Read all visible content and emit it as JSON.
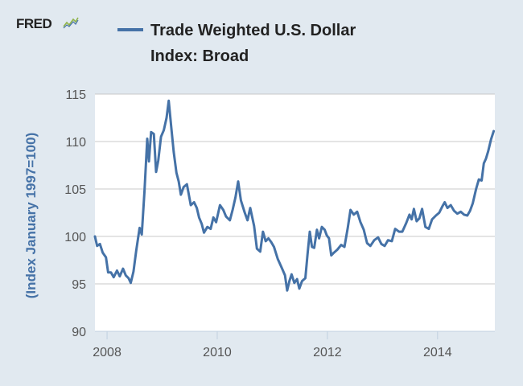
{
  "logo": {
    "text": "FRED"
  },
  "legend": {
    "line1": "Trade Weighted U.S. Dollar",
    "line2": "Index: Broad"
  },
  "colors": {
    "background": "#e1e9f0",
    "plot_background": "#ffffff",
    "series": "#4572a7",
    "grid": "#c8c8c8",
    "axis": "#c0d0e0",
    "axis_label": "#4572a7",
    "tick_text": "#555555"
  },
  "chart_data": {
    "type": "line",
    "title": "",
    "ylabel": "(Index January 1997=100)",
    "xlabel": "",
    "xlim": [
      2007.78,
      2015.04
    ],
    "ylim": [
      90,
      115
    ],
    "yticks": [
      90,
      95,
      100,
      105,
      110,
      115
    ],
    "xticks": [
      2008,
      2010,
      2012,
      2014
    ],
    "grid": true,
    "legend_position": "top",
    "series": [
      {
        "name": "Trade Weighted U.S. Dollar Index: Broad",
        "color": "#4572a7",
        "points": [
          [
            2007.78,
            100.0
          ],
          [
            2007.82,
            99.0
          ],
          [
            2007.87,
            99.2
          ],
          [
            2007.92,
            98.3
          ],
          [
            2007.98,
            97.8
          ],
          [
            2008.02,
            96.2
          ],
          [
            2008.07,
            96.2
          ],
          [
            2008.12,
            95.7
          ],
          [
            2008.18,
            96.4
          ],
          [
            2008.23,
            95.8
          ],
          [
            2008.29,
            96.6
          ],
          [
            2008.34,
            95.9
          ],
          [
            2008.39,
            95.6
          ],
          [
            2008.43,
            95.1
          ],
          [
            2008.48,
            96.3
          ],
          [
            2008.53,
            98.5
          ],
          [
            2008.59,
            100.9
          ],
          [
            2008.63,
            100.2
          ],
          [
            2008.68,
            104.8
          ],
          [
            2008.73,
            110.3
          ],
          [
            2008.76,
            107.9
          ],
          [
            2008.8,
            111.0
          ],
          [
            2008.85,
            110.8
          ],
          [
            2008.89,
            106.8
          ],
          [
            2008.93,
            108.0
          ],
          [
            2008.98,
            110.5
          ],
          [
            2009.03,
            111.2
          ],
          [
            2009.08,
            112.5
          ],
          [
            2009.12,
            114.3
          ],
          [
            2009.17,
            111.2
          ],
          [
            2009.21,
            108.9
          ],
          [
            2009.26,
            106.7
          ],
          [
            2009.3,
            105.8
          ],
          [
            2009.34,
            104.4
          ],
          [
            2009.39,
            105.2
          ],
          [
            2009.45,
            105.5
          ],
          [
            2009.52,
            103.3
          ],
          [
            2009.58,
            103.6
          ],
          [
            2009.63,
            103.0
          ],
          [
            2009.67,
            102.0
          ],
          [
            2009.72,
            101.3
          ],
          [
            2009.76,
            100.4
          ],
          [
            2009.82,
            101.0
          ],
          [
            2009.88,
            100.8
          ],
          [
            2009.93,
            102.0
          ],
          [
            2009.98,
            101.5
          ],
          [
            2010.05,
            103.3
          ],
          [
            2010.11,
            102.8
          ],
          [
            2010.16,
            102.1
          ],
          [
            2010.23,
            101.7
          ],
          [
            2010.28,
            102.8
          ],
          [
            2010.33,
            104.1
          ],
          [
            2010.38,
            105.8
          ],
          [
            2010.43,
            103.8
          ],
          [
            2010.5,
            102.5
          ],
          [
            2010.55,
            101.7
          ],
          [
            2010.6,
            103.0
          ],
          [
            2010.67,
            101.1
          ],
          [
            2010.72,
            98.7
          ],
          [
            2010.78,
            98.4
          ],
          [
            2010.83,
            100.5
          ],
          [
            2010.88,
            99.5
          ],
          [
            2010.93,
            99.8
          ],
          [
            2010.98,
            99.4
          ],
          [
            2011.03,
            98.9
          ],
          [
            2011.1,
            97.6
          ],
          [
            2011.17,
            96.7
          ],
          [
            2011.23,
            95.9
          ],
          [
            2011.27,
            94.3
          ],
          [
            2011.31,
            95.3
          ],
          [
            2011.35,
            96.0
          ],
          [
            2011.4,
            95.1
          ],
          [
            2011.45,
            95.5
          ],
          [
            2011.49,
            94.5
          ],
          [
            2011.54,
            95.3
          ],
          [
            2011.6,
            95.6
          ],
          [
            2011.64,
            98.1
          ],
          [
            2011.68,
            100.5
          ],
          [
            2011.72,
            98.9
          ],
          [
            2011.76,
            98.8
          ],
          [
            2011.81,
            100.7
          ],
          [
            2011.85,
            99.8
          ],
          [
            2011.9,
            101.0
          ],
          [
            2011.95,
            100.7
          ],
          [
            2011.99,
            100.1
          ],
          [
            2012.03,
            99.8
          ],
          [
            2012.07,
            98.0
          ],
          [
            2012.12,
            98.3
          ],
          [
            2012.18,
            98.6
          ],
          [
            2012.25,
            99.1
          ],
          [
            2012.31,
            98.9
          ],
          [
            2012.37,
            100.9
          ],
          [
            2012.42,
            102.8
          ],
          [
            2012.48,
            102.3
          ],
          [
            2012.54,
            102.6
          ],
          [
            2012.6,
            101.5
          ],
          [
            2012.66,
            100.7
          ],
          [
            2012.72,
            99.3
          ],
          [
            2012.78,
            99.0
          ],
          [
            2012.85,
            99.6
          ],
          [
            2012.92,
            99.9
          ],
          [
            2012.98,
            99.2
          ],
          [
            2013.04,
            99.0
          ],
          [
            2013.1,
            99.6
          ],
          [
            2013.17,
            99.5
          ],
          [
            2013.23,
            100.8
          ],
          [
            2013.3,
            100.5
          ],
          [
            2013.36,
            100.5
          ],
          [
            2013.43,
            101.4
          ],
          [
            2013.49,
            102.3
          ],
          [
            2013.53,
            101.8
          ],
          [
            2013.57,
            102.9
          ],
          [
            2013.62,
            101.6
          ],
          [
            2013.67,
            101.9
          ],
          [
            2013.72,
            102.9
          ],
          [
            2013.78,
            101.0
          ],
          [
            2013.84,
            100.8
          ],
          [
            2013.9,
            101.8
          ],
          [
            2013.97,
            102.2
          ],
          [
            2014.03,
            102.5
          ],
          [
            2014.09,
            103.2
          ],
          [
            2014.13,
            103.6
          ],
          [
            2014.18,
            103.0
          ],
          [
            2014.24,
            103.3
          ],
          [
            2014.3,
            102.7
          ],
          [
            2014.36,
            102.4
          ],
          [
            2014.42,
            102.6
          ],
          [
            2014.48,
            102.3
          ],
          [
            2014.54,
            102.2
          ],
          [
            2014.59,
            102.7
          ],
          [
            2014.64,
            103.5
          ],
          [
            2014.7,
            105.0
          ],
          [
            2014.75,
            106.0
          ],
          [
            2014.8,
            105.9
          ],
          [
            2014.84,
            107.7
          ],
          [
            2014.88,
            108.2
          ],
          [
            2014.92,
            109.0
          ],
          [
            2014.97,
            110.2
          ],
          [
            2015.02,
            111.1
          ]
        ]
      }
    ]
  }
}
